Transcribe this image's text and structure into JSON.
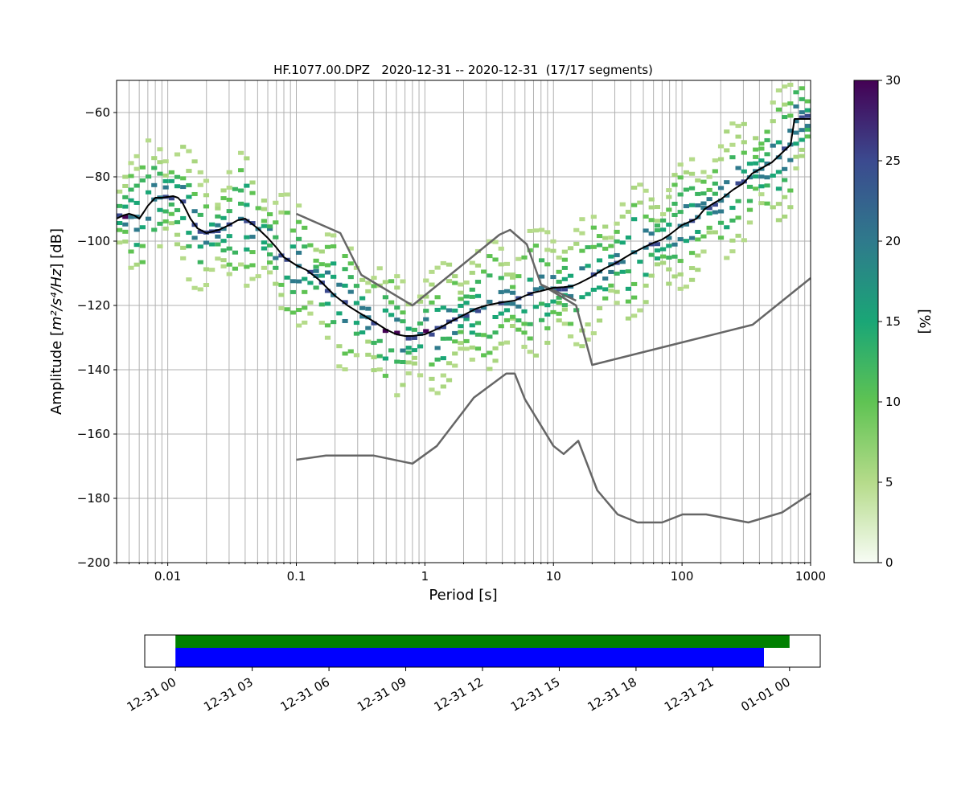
{
  "chart_data": [
    {
      "type": "heatmap",
      "title": "HF.1077.00.DPZ   2020-12-31 -- 2020-12-31  (17/17 segments)",
      "xlabel": "Period [s]",
      "ylabel_prefix": "Amplitude [",
      "ylabel_math": "m²/s⁴/Hz",
      "ylabel_suffix": "] [dB]",
      "xscale": "log",
      "xlim": [
        0.004,
        1000
      ],
      "ylim": [
        -200,
        -50
      ],
      "xticks": [
        0.01,
        0.1,
        1,
        10,
        100,
        1000
      ],
      "xtick_labels": [
        "0.01",
        "0.1",
        "1",
        "10",
        "100",
        "1000"
      ],
      "yticks": [
        -200,
        -180,
        -160,
        -140,
        -120,
        -100,
        -80,
        -60
      ],
      "ytick_labels": [
        "−200",
        "−180",
        "−160",
        "−140",
        "−120",
        "−100",
        "−80",
        "−60"
      ],
      "grid": true,
      "colorbar": {
        "label": "[%]",
        "range": [
          0,
          30
        ],
        "ticks": [
          0,
          5,
          10,
          15,
          20,
          25,
          30
        ],
        "tick_labels": [
          "0",
          "5",
          "10",
          "15",
          "20",
          "25",
          "30"
        ],
        "colors": [
          "#f7fcf5",
          "#b5db8a",
          "#5fc353",
          "#1aa676",
          "#2f7a8c",
          "#3b4a8f",
          "#440154"
        ]
      },
      "mean_curve": {
        "name": "mean",
        "color": "#000000",
        "points": [
          [
            0.004,
            -93
          ],
          [
            0.0045,
            -92
          ],
          [
            0.005,
            -91.5
          ],
          [
            0.0055,
            -92
          ],
          [
            0.006,
            -93
          ],
          [
            0.0065,
            -91
          ],
          [
            0.007,
            -89
          ],
          [
            0.008,
            -86.5
          ],
          [
            0.009,
            -86.5
          ],
          [
            0.011,
            -86
          ],
          [
            0.012,
            -86.5
          ],
          [
            0.013,
            -88
          ],
          [
            0.015,
            -93
          ],
          [
            0.017,
            -96
          ],
          [
            0.02,
            -97.5
          ],
          [
            0.025,
            -96.5
          ],
          [
            0.03,
            -95
          ],
          [
            0.035,
            -93.5
          ],
          [
            0.04,
            -93
          ],
          [
            0.05,
            -96
          ],
          [
            0.06,
            -99
          ],
          [
            0.07,
            -102
          ],
          [
            0.08,
            -105
          ],
          [
            0.1,
            -107.5
          ],
          [
            0.12,
            -109
          ],
          [
            0.15,
            -112
          ],
          [
            0.2,
            -117
          ],
          [
            0.25,
            -120
          ],
          [
            0.3,
            -122
          ],
          [
            0.4,
            -125
          ],
          [
            0.5,
            -127.5
          ],
          [
            0.6,
            -129
          ],
          [
            0.7,
            -129.5
          ],
          [
            0.8,
            -129.5
          ],
          [
            1.0,
            -129
          ],
          [
            1.3,
            -127
          ],
          [
            1.6,
            -125
          ],
          [
            2.0,
            -123
          ],
          [
            2.5,
            -121
          ],
          [
            3.0,
            -120
          ],
          [
            4.0,
            -119
          ],
          [
            5.0,
            -118.5
          ],
          [
            6.0,
            -117
          ],
          [
            7.0,
            -116
          ],
          [
            8.0,
            -115.5
          ],
          [
            10,
            -114.5
          ],
          [
            12,
            -114.3
          ],
          [
            14,
            -114
          ],
          [
            16,
            -113
          ],
          [
            20,
            -111
          ],
          [
            25,
            -108.5
          ],
          [
            30,
            -107
          ],
          [
            40,
            -104
          ],
          [
            50,
            -102
          ],
          [
            60,
            -100.5
          ],
          [
            70,
            -99.5
          ],
          [
            80,
            -98
          ],
          [
            100,
            -95
          ],
          [
            130,
            -93
          ],
          [
            150,
            -90
          ],
          [
            180,
            -88
          ],
          [
            200,
            -87
          ],
          [
            250,
            -84
          ],
          [
            300,
            -82
          ],
          [
            350,
            -79
          ],
          [
            500,
            -75.5
          ],
          [
            700,
            -70
          ],
          [
            750,
            -62
          ],
          [
            1000,
            -62
          ]
        ]
      },
      "noise_model_curves": [
        {
          "name": "upper-1",
          "color": "#666666",
          "points": [
            [
              0.1,
              -91.5
            ],
            [
              0.22,
              -97.5
            ],
            [
              0.32,
              -110.5
            ],
            [
              0.8,
              -120
            ],
            [
              3.8,
              -98
            ],
            [
              4.6,
              -96.5
            ],
            [
              6.2,
              -101
            ],
            [
              8.0,
              -113.5
            ],
            [
              15,
              -118.5
            ]
          ]
        },
        {
          "name": "upper-2",
          "color": "#666666",
          "points": [
            [
              8.0,
              -113.5
            ],
            [
              15,
              -120
            ],
            [
              20,
              -138.5
            ],
            [
              100,
              -131.5
            ],
            [
              354,
              -126
            ],
            [
              1000,
              -111.5
            ]
          ]
        },
        {
          "name": "lower",
          "color": "#666666",
          "points": [
            [
              0.1,
              -168
            ],
            [
              0.17,
              -166.7
            ],
            [
              0.4,
              -166.7
            ],
            [
              0.8,
              -169.2
            ],
            [
              1.24,
              -163.7
            ],
            [
              2.4,
              -148.7
            ],
            [
              4.3,
              -141.2
            ],
            [
              5.0,
              -141.2
            ],
            [
              6.0,
              -149.2
            ],
            [
              10,
              -163.7
            ],
            [
              12,
              -166.2
            ],
            [
              15.6,
              -162.1
            ],
            [
              21.9,
              -177.5
            ],
            [
              31.6,
              -185
            ],
            [
              45,
              -187.5
            ],
            [
              70,
              -187.5
            ],
            [
              101,
              -185
            ],
            [
              154,
              -185
            ],
            [
              328,
              -187.5
            ],
            [
              600,
              -184.4
            ],
            [
              1000,
              -178.5
            ]
          ]
        }
      ]
    },
    {
      "type": "timeline",
      "xticks": [
        "12-31 00",
        "12-31 03",
        "12-31 06",
        "12-31 09",
        "12-31 12",
        "12-31 15",
        "12-31 18",
        "12-31 21",
        "01-01 00"
      ],
      "xlim_hours": [
        -1.2,
        25.2
      ],
      "bars": [
        {
          "name": "data",
          "color": "#008000",
          "start_hours": 0,
          "end_hours": 24
        },
        {
          "name": "used",
          "color": "#0000ff",
          "start_hours": 0,
          "end_hours": 23
        }
      ]
    }
  ]
}
